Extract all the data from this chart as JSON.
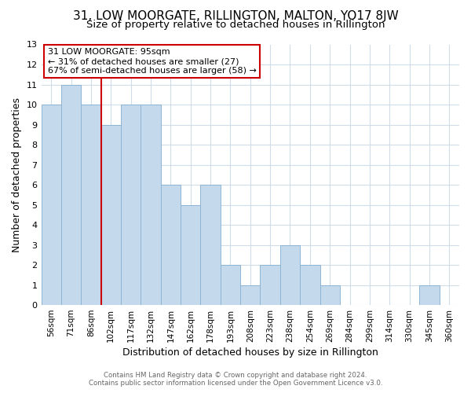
{
  "title": "31, LOW MOORGATE, RILLINGTON, MALTON, YO17 8JW",
  "subtitle": "Size of property relative to detached houses in Rillington",
  "xlabel": "Distribution of detached houses by size in Rillington",
  "ylabel": "Number of detached properties",
  "bar_labels": [
    "56sqm",
    "71sqm",
    "86sqm",
    "102sqm",
    "117sqm",
    "132sqm",
    "147sqm",
    "162sqm",
    "178sqm",
    "193sqm",
    "208sqm",
    "223sqm",
    "238sqm",
    "254sqm",
    "269sqm",
    "284sqm",
    "299sqm",
    "314sqm",
    "330sqm",
    "345sqm",
    "360sqm"
  ],
  "bar_values": [
    10,
    11,
    10,
    9,
    10,
    10,
    6,
    5,
    6,
    2,
    1,
    2,
    3,
    2,
    1,
    0,
    0,
    0,
    0,
    1,
    0
  ],
  "bar_color": "#c5d9ed",
  "bar_edge_color": "#8eb4d4",
  "reference_line_color": "#cc0000",
  "annotation_title": "31 LOW MOORGATE: 95sqm",
  "annotation_line1": "← 31% of detached houses are smaller (27)",
  "annotation_line2": "67% of semi-detached houses are larger (58) →",
  "annotation_box_color": "#ffffff",
  "annotation_box_edge": "#cc0000",
  "ylim": [
    0,
    13
  ],
  "footer1": "Contains HM Land Registry data © Crown copyright and database right 2024.",
  "footer2": "Contains public sector information licensed under the Open Government Licence v3.0.",
  "bg_color": "#ffffff",
  "grid_color": "#d0dce8",
  "title_fontsize": 11,
  "subtitle_fontsize": 9.5,
  "ylabel_fontsize": 9,
  "xlabel_fontsize": 9
}
